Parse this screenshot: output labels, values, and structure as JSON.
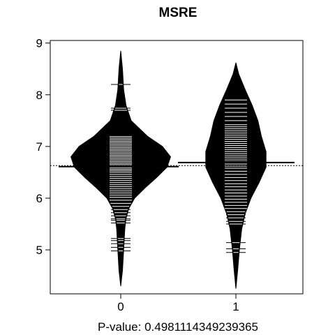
{
  "chart_data": {
    "type": "beanplot",
    "title": "MSRE",
    "xlabel": "P-value: 0.4981114349239365",
    "ylabel": "",
    "ylim": [
      4.15,
      9.05
    ],
    "yticks": [
      "5",
      "6",
      "7",
      "8",
      "9"
    ],
    "categories": [
      "0",
      "1"
    ],
    "overall_mean": 6.63,
    "series": [
      {
        "category": "0",
        "mean": 6.61,
        "density": [
          [
            4.3,
            0.0
          ],
          [
            4.6,
            0.03
          ],
          [
            5.0,
            0.05
          ],
          [
            5.4,
            0.07
          ],
          [
            5.6,
            0.09
          ],
          [
            5.8,
            0.14
          ],
          [
            6.0,
            0.24
          ],
          [
            6.2,
            0.42
          ],
          [
            6.4,
            0.62
          ],
          [
            6.6,
            0.8
          ],
          [
            6.8,
            0.86
          ],
          [
            7.0,
            0.72
          ],
          [
            7.2,
            0.46
          ],
          [
            7.5,
            0.18
          ],
          [
            7.8,
            0.09
          ],
          [
            8.1,
            0.05
          ],
          [
            8.5,
            0.03
          ],
          [
            8.85,
            0.0
          ]
        ],
        "points": [
          4.98,
          5.05,
          5.12,
          5.18,
          5.22,
          5.52,
          5.57,
          5.6,
          5.66,
          5.72,
          5.78,
          5.84,
          5.9,
          5.96,
          6.02,
          6.06,
          6.1,
          6.14,
          6.18,
          6.22,
          6.26,
          6.3,
          6.34,
          6.38,
          6.42,
          6.46,
          6.5,
          6.53,
          6.56,
          6.59,
          6.62,
          6.65,
          6.68,
          6.71,
          6.74,
          6.77,
          6.8,
          6.83,
          6.86,
          6.89,
          6.92,
          6.95,
          6.98,
          7.01,
          7.04,
          7.07,
          7.1,
          7.13,
          7.16,
          7.19,
          7.7,
          7.74,
          8.2
        ]
      },
      {
        "category": "1",
        "mean": 6.69,
        "density": [
          [
            4.25,
            0.0
          ],
          [
            4.6,
            0.03
          ],
          [
            5.0,
            0.06
          ],
          [
            5.4,
            0.1
          ],
          [
            5.7,
            0.16
          ],
          [
            6.0,
            0.26
          ],
          [
            6.3,
            0.4
          ],
          [
            6.6,
            0.52
          ],
          [
            6.9,
            0.52
          ],
          [
            7.2,
            0.44
          ],
          [
            7.5,
            0.38
          ],
          [
            7.8,
            0.28
          ],
          [
            8.1,
            0.16
          ],
          [
            8.4,
            0.05
          ],
          [
            8.62,
            0.0
          ]
        ],
        "points": [
          4.95,
          5.02,
          5.14,
          5.5,
          5.55,
          5.62,
          5.68,
          5.74,
          5.8,
          5.86,
          5.92,
          5.98,
          6.04,
          6.1,
          6.16,
          6.22,
          6.28,
          6.34,
          6.4,
          6.46,
          6.52,
          6.58,
          6.62,
          6.66,
          6.7,
          6.74,
          6.78,
          6.82,
          6.86,
          6.9,
          6.94,
          6.98,
          7.02,
          7.06,
          7.1,
          7.14,
          7.18,
          7.22,
          7.26,
          7.3,
          7.34,
          7.38,
          7.42,
          7.5,
          7.58,
          7.66,
          7.74,
          7.82,
          7.9
        ]
      }
    ]
  }
}
